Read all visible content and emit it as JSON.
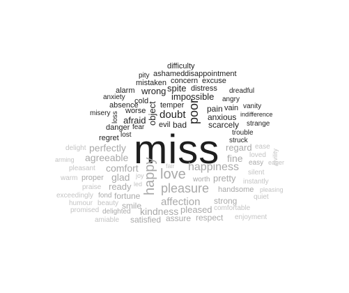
{
  "colors": {
    "negative": "#1e1e1e",
    "positive": "#a9a9a9",
    "positive_light": "#c4c4c4",
    "background": "#ffffff"
  },
  "center_word": "miss",
  "negative_words": {
    "difficulty": "difficulty",
    "pity": "pity",
    "ashamed": "ashamed",
    "disappointment": "disappointment",
    "mistaken": "mistaken",
    "concern": "concern",
    "excuse": "excuse",
    "alarm": "alarm",
    "wrong": "wrong",
    "spite": "spite",
    "distress": "distress",
    "dreadful": "dreadful",
    "anxiety": "anxiety",
    "impossible": "impossible",
    "angry": "angry",
    "absence": "absence",
    "cold": "cold",
    "temper": "temper",
    "vanity": "vanity",
    "misery": "misery",
    "loss": "loss",
    "worse": "worse",
    "object": "object",
    "doubt": "doubt",
    "poor": "poor",
    "pain": "pain",
    "vain": "vain",
    "indifference": "indifference",
    "afraid": "afraid",
    "anxious": "anxious",
    "danger": "danger",
    "fear": "fear",
    "evil": "evil",
    "bad": "bad",
    "scarcely": "scarcely",
    "strange": "strange",
    "lost": "lost",
    "trouble": "trouble",
    "regret": "regret",
    "struck": "struck"
  },
  "positive_words": {
    "delight": "delight",
    "perfectly": "perfectly",
    "regard": "regard",
    "ease": "ease",
    "civility": "civility",
    "charming": "arming",
    "agreeable": "agreeable",
    "fine": "fine",
    "loved": "loved",
    "easy": "easy",
    "eager": "eager",
    "pleasant": "pleasant",
    "comfort": "comfort",
    "fair": "fair",
    "happiness": "happiness",
    "silent": "silent",
    "warm": "warm",
    "proper": "proper",
    "glad": "glad",
    "joy": "joy",
    "happy": "happy",
    "love": "love",
    "pretty": "pretty",
    "instantly": "instantly",
    "praise": "praise",
    "ready": "ready",
    "led": "led",
    "pleasure": "pleasure",
    "worth": "worth",
    "handsome": "handsome",
    "pleasing": "pleasing",
    "exceedingly": "exceedingly",
    "fond": "fond",
    "fortune": "fortune",
    "strong": "strong",
    "quiet": "quiet",
    "humour": "humour",
    "beauty": "beauty",
    "affection": "affection",
    "comfortable": "comfortable",
    "promised": "promised",
    "delighted": "delighted",
    "smile": "smile",
    "pleased": "pleased",
    "kindness": "kindness",
    "amiable": "amiable",
    "satisfied": "satisfied",
    "assure": "assure",
    "respect": "respect",
    "enjoyment": "enjoyment"
  }
}
